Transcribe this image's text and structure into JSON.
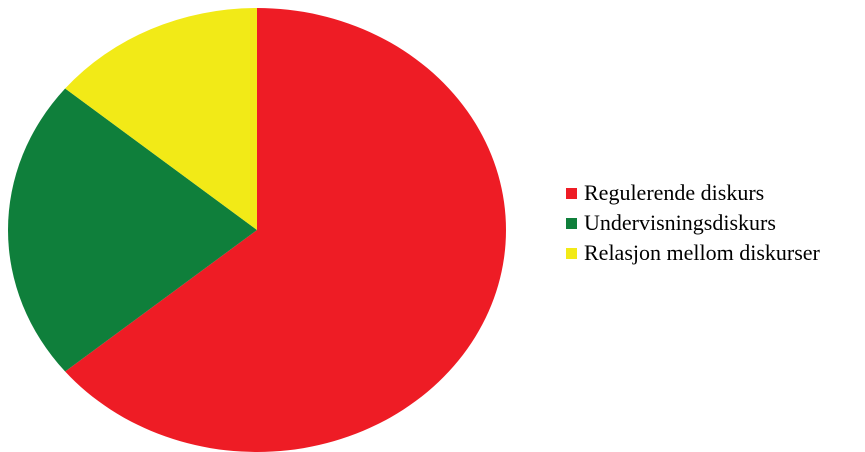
{
  "chart_data": {
    "type": "pie",
    "title": "",
    "categories": [
      "Regulerende diskurs",
      "Undervisningsdiskurs",
      "Relasjon mellom diskurser"
    ],
    "values": [
      64,
      22,
      14
    ],
    "colors": [
      "#ee1c25",
      "#0f7f3b",
      "#f2ea17"
    ],
    "start": "12 o'clock",
    "direction": "clockwise",
    "legend_position": "right"
  }
}
